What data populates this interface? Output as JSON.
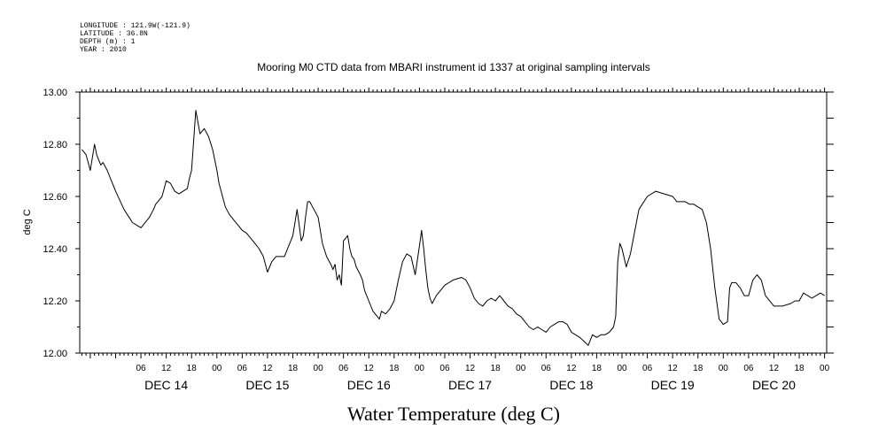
{
  "header": {
    "longitude": "LONGITUDE : 121.9W(-121.9)",
    "latitude": "LATITUDE : 36.8N",
    "depth": "DEPTH (m) : 1",
    "year": "YEAR : 2010"
  },
  "chart_data": {
    "type": "line",
    "title": "Mooring M0 CTD data from MBARI instrument id 1337 at original sampling intervals",
    "xlabel": "Water Temperature (deg C)",
    "ylabel": "deg C",
    "ylim": [
      12.0,
      13.0
    ],
    "yticks": [
      "12.00",
      "12.20",
      "12.40",
      "12.60",
      "12.80",
      "13.00"
    ],
    "xlim": [
      -8.5,
      168.5
    ],
    "x_units": "hours from 2010-12-14 00:00",
    "hour_ticks": [
      "06",
      "12",
      "18",
      "00",
      "06",
      "12",
      "18",
      "00",
      "06",
      "12",
      "18",
      "00",
      "06",
      "12",
      "18",
      "00",
      "06",
      "12",
      "18",
      "00",
      "06",
      "12",
      "18",
      "00",
      "06",
      "12",
      "18",
      "00"
    ],
    "day_labels": [
      "DEC 14",
      "DEC 15",
      "DEC 16",
      "DEC 17",
      "DEC 18",
      "DEC 19",
      "DEC 20"
    ],
    "grid": false,
    "series": [
      {
        "color": "#000000",
        "x": [
          -8,
          -7,
          -6.5,
          -6,
          -5.5,
          -5,
          -4.5,
          -4,
          -3.5,
          -3,
          -2,
          -1,
          0,
          2,
          4,
          6,
          8,
          9,
          9.5,
          10,
          11,
          12,
          13,
          14,
          15,
          16,
          17,
          17.5,
          18,
          19,
          20,
          21,
          22,
          23,
          24,
          24.5,
          25,
          26,
          27,
          27.5,
          28,
          29,
          30,
          31,
          32,
          33,
          34,
          35,
          36,
          37,
          38,
          40,
          42,
          43,
          44,
          44.5,
          45,
          45.5,
          46,
          47,
          48,
          49,
          50,
          51,
          51.5,
          52,
          52.5,
          53,
          53.5,
          54,
          55,
          55.5,
          56,
          56.5,
          57,
          58,
          58.5,
          59,
          60,
          61,
          62,
          62.5,
          63,
          64,
          65,
          66,
          67,
          68,
          69,
          70,
          71,
          72,
          72.5,
          73,
          73.5,
          74,
          74.5,
          75,
          76,
          77,
          78,
          80,
          82,
          83,
          84,
          85,
          86,
          87,
          88,
          89,
          90,
          91,
          92,
          93,
          94,
          95,
          96,
          97,
          98,
          99,
          100,
          101,
          102,
          103,
          104,
          105,
          106,
          107,
          108,
          110,
          112,
          113,
          114,
          115,
          116,
          117,
          118,
          118.5,
          119,
          119.5,
          120,
          121,
          122,
          124,
          126,
          128,
          130,
          132,
          133,
          134,
          135,
          136,
          137,
          138,
          139,
          140,
          141,
          142,
          143,
          144,
          145,
          145.5,
          146,
          147,
          148,
          149,
          150,
          151,
          152,
          153,
          154,
          156,
          158,
          160,
          161,
          162,
          163,
          164,
          165,
          166,
          167,
          168
        ],
        "y": [
          12.78,
          12.76,
          12.73,
          12.7,
          12.75,
          12.8,
          12.76,
          12.74,
          12.72,
          12.73,
          12.7,
          12.66,
          12.62,
          12.55,
          12.5,
          12.48,
          12.52,
          12.55,
          12.57,
          12.58,
          12.6,
          12.66,
          12.65,
          12.62,
          12.61,
          12.62,
          12.63,
          12.67,
          12.7,
          12.93,
          12.84,
          12.86,
          12.83,
          12.78,
          12.7,
          12.65,
          12.62,
          12.56,
          12.53,
          12.52,
          12.51,
          12.49,
          12.47,
          12.46,
          12.44,
          12.42,
          12.4,
          12.37,
          12.31,
          12.35,
          12.37,
          12.37,
          12.45,
          12.55,
          12.43,
          12.45,
          12.52,
          12.58,
          12.58,
          12.55,
          12.52,
          12.42,
          12.37,
          12.34,
          12.32,
          12.34,
          12.28,
          12.3,
          12.26,
          12.43,
          12.45,
          12.4,
          12.37,
          12.36,
          12.33,
          12.3,
          12.28,
          12.24,
          12.2,
          12.16,
          12.14,
          12.13,
          12.16,
          12.15,
          12.17,
          12.2,
          12.28,
          12.35,
          12.38,
          12.37,
          12.3,
          12.41,
          12.47,
          12.4,
          12.32,
          12.25,
          12.21,
          12.19,
          12.22,
          12.24,
          12.26,
          12.28,
          12.29,
          12.28,
          12.25,
          12.21,
          12.19,
          12.18,
          12.2,
          12.21,
          12.2,
          12.22,
          12.2,
          12.18,
          12.17,
          12.15,
          12.14,
          12.12,
          12.1,
          12.09,
          12.1,
          12.09,
          12.08,
          12.1,
          12.11,
          12.12,
          12.12,
          12.11,
          12.08,
          12.06,
          12.03,
          12.07,
          12.06,
          12.07,
          12.07,
          12.08,
          12.1,
          12.14,
          12.35,
          12.42,
          12.4,
          12.33,
          12.38,
          12.55,
          12.6,
          12.62,
          12.61,
          12.6,
          12.58,
          12.58,
          12.58,
          12.57,
          12.57,
          12.56,
          12.55,
          12.5,
          12.4,
          12.25,
          12.13,
          12.11,
          12.12,
          12.25,
          12.27,
          12.27,
          12.25,
          12.22,
          12.22,
          12.28,
          12.3,
          12.28,
          12.22,
          12.18,
          12.18,
          12.19,
          12.2,
          12.2,
          12.23,
          12.22,
          12.21,
          12.22,
          12.23,
          12.22
        ]
      }
    ]
  }
}
